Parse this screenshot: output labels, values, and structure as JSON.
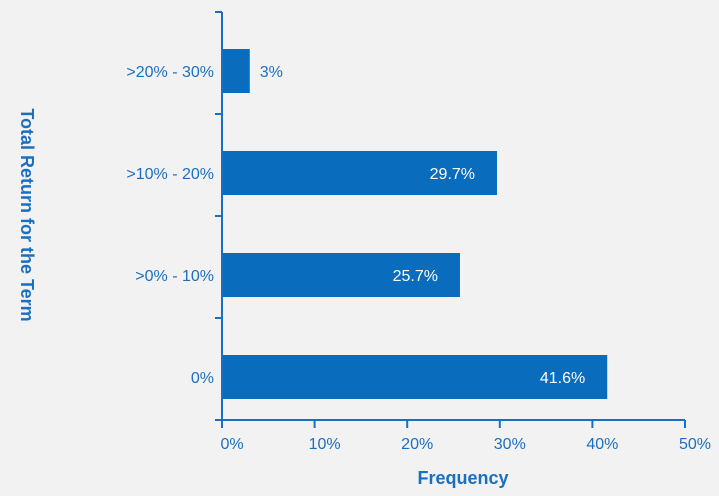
{
  "chart_data": {
    "type": "bar",
    "orientation": "horizontal",
    "title": "",
    "xlabel": "Frequency",
    "ylabel": "Total Return for the Term",
    "categories": [
      ">20% - 30%",
      ">10% - 20%",
      ">0% - 10%",
      "0%"
    ],
    "values": [
      3,
      29.7,
      25.7,
      41.6
    ],
    "value_labels": [
      "3%",
      "29.7%",
      "25.7%",
      "41.6%"
    ],
    "xlim": [
      0,
      50
    ],
    "x_ticks": [
      0,
      10,
      20,
      30,
      40,
      50
    ],
    "x_tick_labels": [
      "0%",
      "10%",
      "20%",
      "30%",
      "40%",
      "50%"
    ],
    "grid": false,
    "legend": "none",
    "colors": {
      "bar": "#0a6cbd",
      "axis": "#1a6fc0",
      "text": "#1a6fc0",
      "label_inside": "#ffffff",
      "background": "#f2f2f2"
    }
  }
}
